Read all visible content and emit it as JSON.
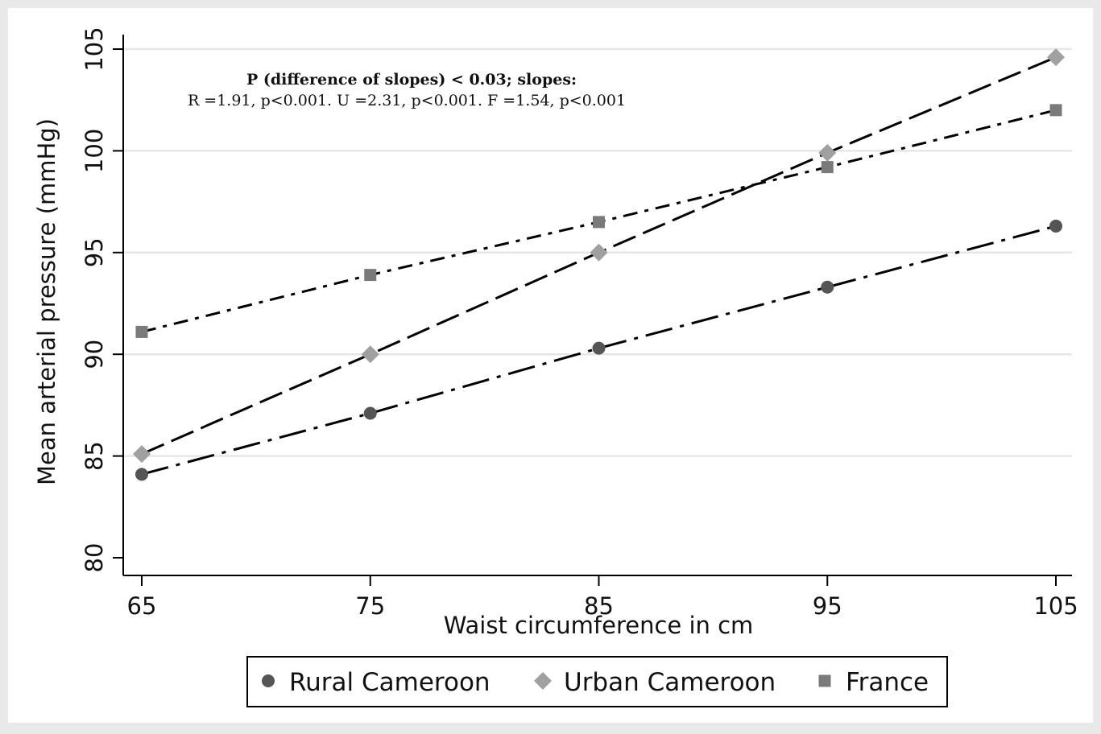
{
  "chart_data": {
    "type": "line",
    "title": "",
    "xlabel": "Waist circumference in cm",
    "ylabel": "Mean arterial pressure (mmHg)",
    "x": [
      65,
      75,
      85,
      95,
      105
    ],
    "xlim": [
      65,
      105
    ],
    "ylim": [
      80,
      105
    ],
    "xticks": [
      "65",
      "75",
      "85",
      "95",
      "105"
    ],
    "yticks": [
      "80",
      "85",
      "90",
      "95",
      "100",
      "105"
    ],
    "grid": "horizontal",
    "legend_position": "bottom",
    "series": [
      {
        "name": "Rural Cameroon",
        "marker": "circle",
        "color": "#555555",
        "dash": "long-dash-dot",
        "values": [
          84.1,
          87.1,
          90.3,
          93.3,
          96.3
        ]
      },
      {
        "name": "Urban Cameroon",
        "marker": "diamond",
        "color": "#a0a0a0",
        "dash": "long-dash",
        "values": [
          85.1,
          90.0,
          95.0,
          99.9,
          104.6
        ]
      },
      {
        "name": "France",
        "marker": "square",
        "color": "#7a7a7a",
        "dash": "dash-dot",
        "values": [
          91.1,
          93.9,
          96.5,
          99.2,
          102.0
        ]
      }
    ],
    "annotation": {
      "line1": "P (difference of slopes) < 0.03; slopes:",
      "line2": "R =1.91, p<0.001.  U =2.31, p<0.001.  F =1.54, p<0.001"
    }
  }
}
